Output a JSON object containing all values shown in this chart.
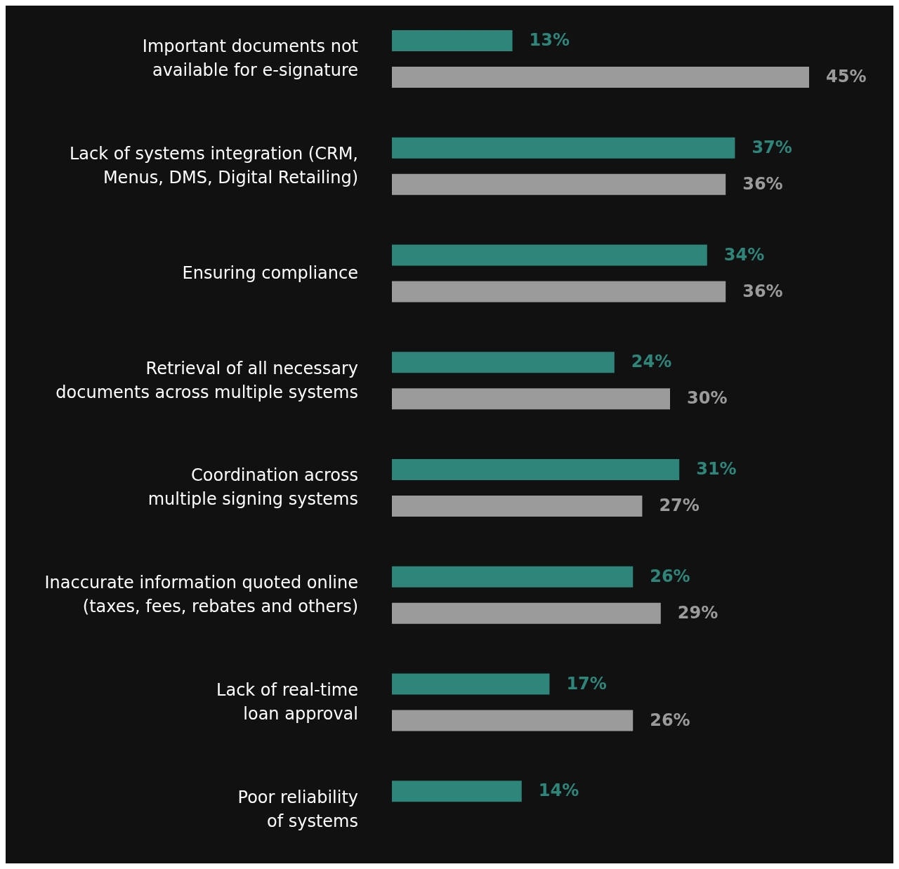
{
  "chart_data": {
    "type": "bar",
    "orientation": "horizontal",
    "categories": [
      "Important documents not available for e-signature",
      "Lack of systems integration (CRM, Menus, DMS, Digital Retailing)",
      "Ensuring compliance",
      "Retrieval of all necessary documents across multiple systems",
      "Coordination across multiple signing systems",
      "Inaccurate information quoted online (taxes, fees, rebates and others)",
      "Lack of real-time loan approval",
      "Poor reliability of systems"
    ],
    "series": [
      {
        "color": "#2e857a",
        "values": [
          13,
          37,
          34,
          24,
          31,
          26,
          17,
          14
        ],
        "value_labels": [
          "13%",
          "37%",
          "34%",
          "24%",
          "31%",
          "26%",
          "17%",
          "14%"
        ]
      },
      {
        "color": "#9b9b9b",
        "values": [
          45,
          36,
          36,
          30,
          27,
          29,
          26,
          null
        ],
        "value_labels": [
          "45%",
          "36%",
          "36%",
          "30%",
          "27%",
          "29%",
          "26%",
          null
        ]
      }
    ]
  }
}
